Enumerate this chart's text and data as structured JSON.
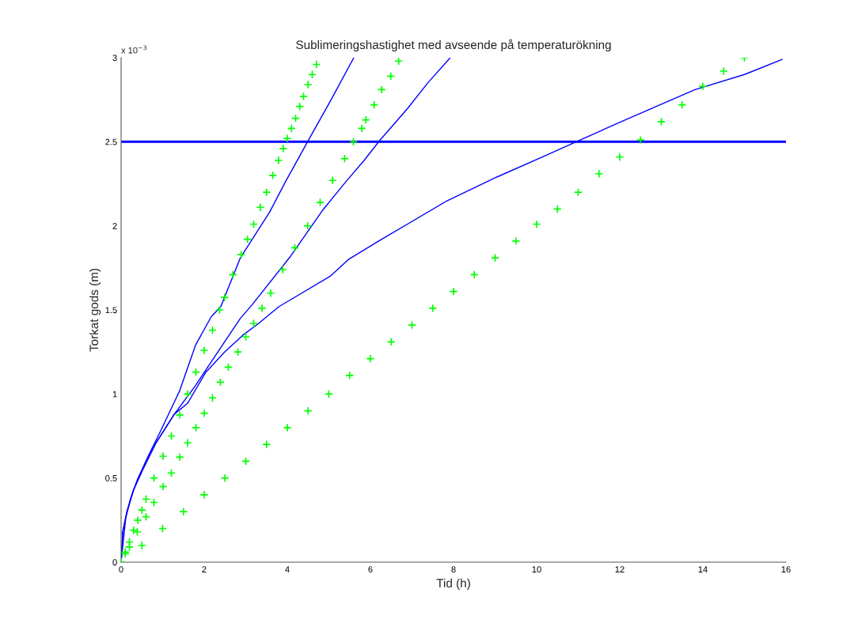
{
  "chart_data": {
    "type": "line",
    "title": "Sublimeringshastighet med avseende på temperaturökning",
    "xlabel": "Tid (h)",
    "ylabel": "Torkat gods (m)",
    "annotations": [
      "x 10$^{−3}$"
    ],
    "xlim": [
      0,
      16
    ],
    "xticks": [
      0,
      2,
      4,
      6,
      8,
      10,
      12,
      14,
      16
    ],
    "ylim": [
      0,
      3
    ],
    "yticks": [
      0,
      0.5,
      1,
      1.5,
      2,
      2.5,
      3
    ],
    "grid": false,
    "legend": false,
    "ref_lines": [
      {
        "axis": "y",
        "value": 2.5,
        "color": "#0000ff"
      }
    ],
    "series": [
      {
        "color": "#0000ff",
        "x": [
          0,
          0.11,
          0.23,
          0.39,
          0.65,
          0.97,
          1.41,
          1.79,
          2.17,
          2.4,
          2.87,
          3.57,
          3.95,
          4.51,
          5.03,
          5.6
        ],
        "values": [
          0,
          0.26,
          0.38,
          0.49,
          0.63,
          0.79,
          1.02,
          1.29,
          1.46,
          1.52,
          1.81,
          2.08,
          2.26,
          2.51,
          2.74,
          3.0
        ]
      },
      {
        "color": "#0000ff",
        "x": [
          0,
          0.04,
          0.14,
          0.3,
          0.52,
          0.84,
          1.28,
          1.79,
          2.3,
          2.87,
          3.15,
          4.08,
          4.84,
          5.4,
          5.85,
          6.23,
          6.9,
          7.38,
          7.92
        ],
        "values": [
          0,
          0.18,
          0.3,
          0.43,
          0.55,
          0.71,
          0.88,
          1.05,
          1.24,
          1.45,
          1.53,
          1.82,
          2.09,
          2.26,
          2.39,
          2.51,
          2.7,
          2.85,
          3.0
        ]
      },
      {
        "color": "#0000ff",
        "x": [
          0,
          0.04,
          0.14,
          0.3,
          0.52,
          0.84,
          1.28,
          1.6,
          2.04,
          2.49,
          2.93,
          3.31,
          3.8,
          5.03,
          5.47,
          6.27,
          7.85,
          9.04,
          10.23,
          10.95,
          12.22,
          13.81,
          15.0,
          15.91
        ],
        "values": [
          0,
          0.18,
          0.3,
          0.43,
          0.55,
          0.71,
          0.88,
          0.945,
          1.13,
          1.25,
          1.35,
          1.42,
          1.52,
          1.7,
          1.8,
          1.92,
          2.15,
          2.29,
          2.42,
          2.5,
          2.64,
          2.81,
          2.9,
          2.99
        ]
      },
      {
        "type": "scatter",
        "marker": "cross",
        "color": "#00ff00",
        "x": [
          0,
          0.1,
          0.2,
          0.3,
          0.4,
          0.5,
          0.6,
          0.79,
          1.01,
          1.21,
          1.41,
          1.6,
          1.8,
          2.0,
          2.2,
          2.37,
          2.49,
          2.69,
          2.89,
          3.04,
          3.19,
          3.35,
          3.5,
          3.65,
          3.79,
          3.9,
          4.0,
          4.1,
          4.2,
          4.3,
          4.39,
          4.5,
          4.6,
          4.7
        ],
        "values": [
          0,
          0.06,
          0.12,
          0.19,
          0.25,
          0.31,
          0.375,
          0.5,
          0.63,
          0.75,
          0.875,
          1.0,
          1.13,
          1.26,
          1.38,
          1.5,
          1.575,
          1.71,
          1.83,
          1.92,
          2.01,
          2.11,
          2.2,
          2.3,
          2.39,
          2.46,
          2.52,
          2.58,
          2.64,
          2.71,
          2.77,
          2.84,
          2.9,
          2.96
        ]
      },
      {
        "type": "scatter",
        "marker": "cross",
        "color": "#00ff00",
        "x": [
          0,
          0.1,
          0.2,
          0.39,
          0.6,
          0.79,
          1.01,
          1.21,
          1.41,
          1.6,
          1.8,
          2.0,
          2.2,
          2.39,
          2.58,
          2.81,
          3.0,
          3.19,
          3.39,
          3.6,
          3.89,
          4.18,
          4.49,
          4.79,
          5.09,
          5.38,
          5.59,
          5.79,
          5.89,
          6.09,
          6.27,
          6.49,
          6.68
        ],
        "values": [
          0,
          0.05,
          0.09,
          0.18,
          0.27,
          0.355,
          0.45,
          0.53,
          0.625,
          0.71,
          0.8,
          0.886,
          0.977,
          1.07,
          1.16,
          1.25,
          1.34,
          1.42,
          1.51,
          1.6,
          1.74,
          1.87,
          2.0,
          2.14,
          2.27,
          2.4,
          2.5,
          2.58,
          2.63,
          2.72,
          2.81,
          2.89,
          2.98
        ]
      },
      {
        "type": "scatter",
        "marker": "cross",
        "color": "#00ff00",
        "x": [
          0,
          0.5,
          1,
          1.5,
          2,
          2.5,
          3,
          3.5,
          4,
          4.5,
          5,
          5.5,
          6,
          6.5,
          7,
          7.5,
          8,
          8.5,
          9,
          9.5,
          10,
          10.5,
          11,
          11.5,
          12,
          12.5,
          13,
          13.5,
          14,
          14.5,
          15
        ],
        "values": [
          0,
          0.1,
          0.2,
          0.3,
          0.4,
          0.5,
          0.6,
          0.7,
          0.8,
          0.9,
          1.0,
          1.11,
          1.21,
          1.31,
          1.41,
          1.51,
          1.61,
          1.71,
          1.81,
          1.91,
          2.01,
          2.1,
          2.2,
          2.31,
          2.41,
          2.51,
          2.62,
          2.72,
          2.83,
          2.92,
          3.0
        ]
      }
    ]
  }
}
